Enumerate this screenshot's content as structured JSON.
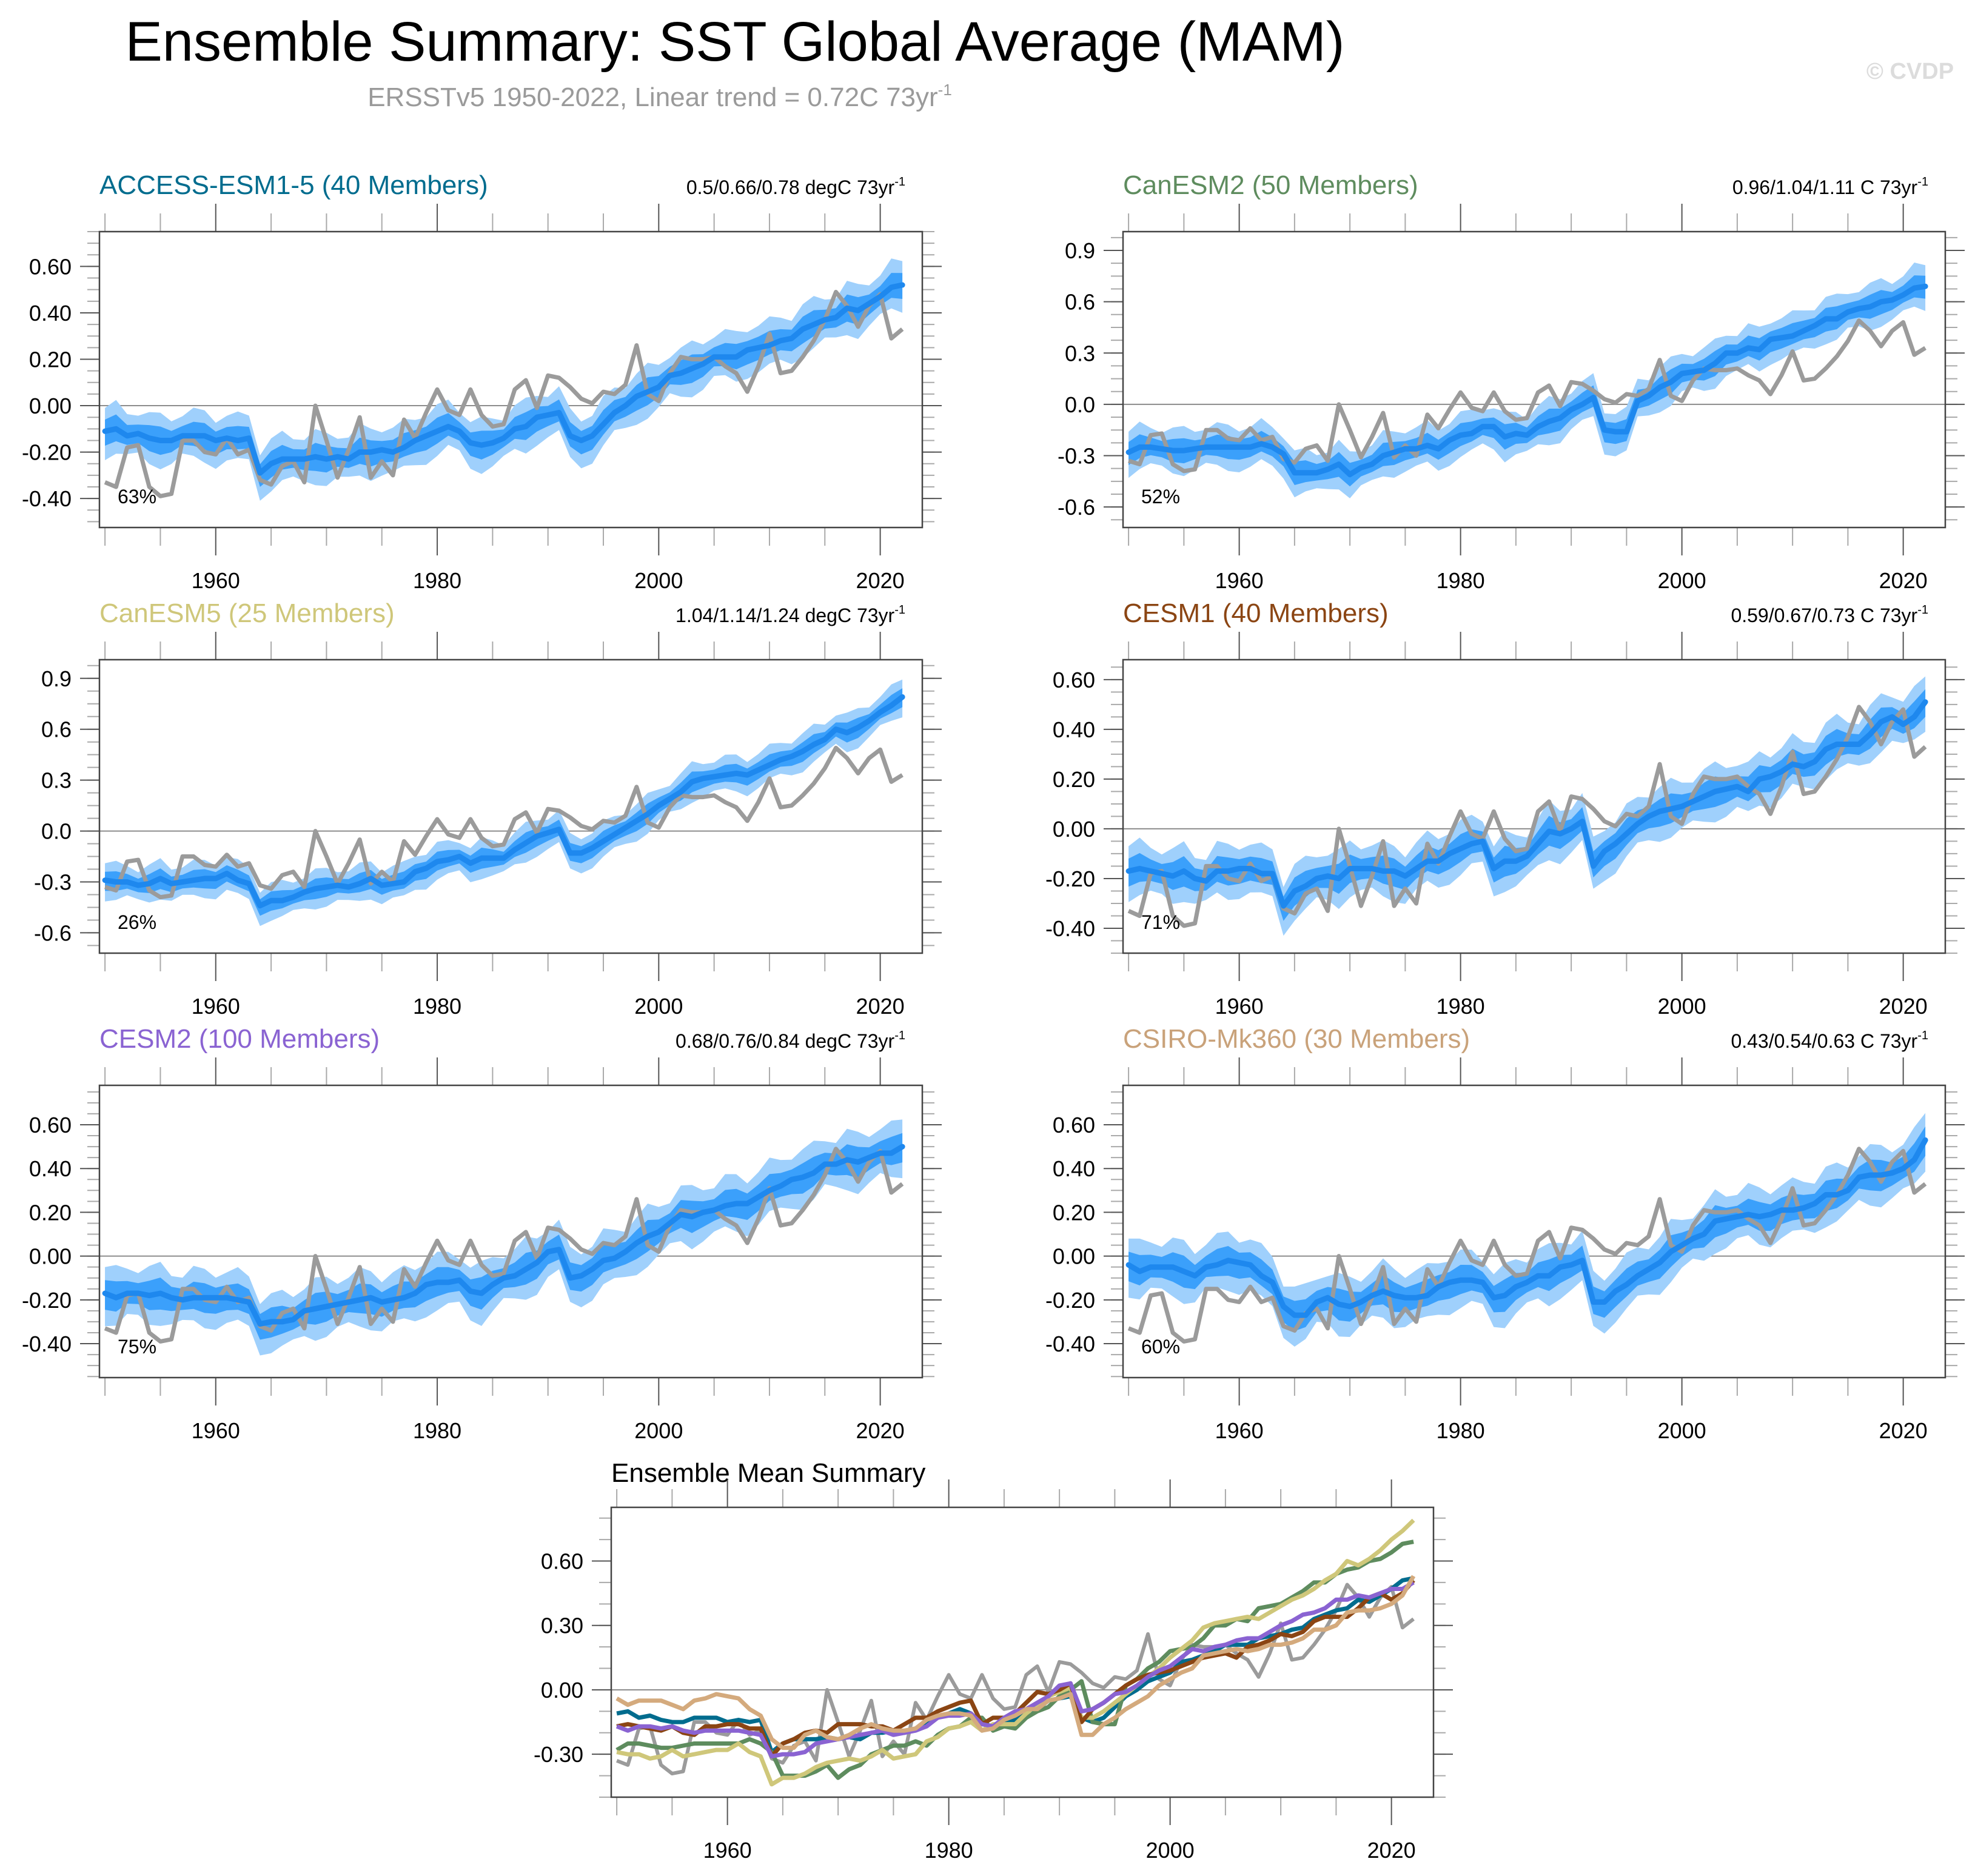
{
  "header": {
    "title": "Ensemble Summary: SST Global Average (MAM)",
    "subtitle": "ERSSTv5 1950-2022, Linear trend = 0.72C 73yr",
    "subtitle_superscript": "-1",
    "watermark": "© CVDP"
  },
  "colors": {
    "band_outer": "#9fd0fc",
    "band_inner": "#3ba0fb",
    "ens_mean": "#1e88ee",
    "observed": "#9b9b9b",
    "zero_line": "#8c8c8c",
    "frame": "#444444"
  },
  "chart_data": [
    {
      "type": "area",
      "panel": "ACCESS-ESM1-5",
      "title": "ACCESS-ESM1-5 (40 Members)",
      "title_color": "#006c8e",
      "trend_text": "0.5/0.66/0.78 degC 73yr",
      "trend_superscript": "-1",
      "percent_label": "63%",
      "xlim": [
        1949.5,
        2023.8
      ],
      "ylim": [
        -0.525,
        0.75
      ],
      "yticks": [
        -0.4,
        -0.2,
        0.0,
        0.2,
        0.4,
        0.6
      ],
      "ytick_labels": [
        "-0.40",
        "-0.20",
        "0.00",
        "0.20",
        "0.40",
        "0.60"
      ],
      "xticks": [
        1960,
        1980,
        2000,
        2020
      ],
      "xtick_labels": [
        "1960",
        "1980",
        "2000",
        "2020"
      ],
      "inner_halfwidth": 0.05,
      "outer_halfwidth": 0.1,
      "mean": [
        -0.11,
        -0.1,
        -0.13,
        -0.12,
        -0.14,
        -0.15,
        -0.15,
        -0.13,
        -0.13,
        -0.13,
        -0.15,
        -0.14,
        -0.15,
        -0.14,
        -0.29,
        -0.25,
        -0.23,
        -0.23,
        -0.23,
        -0.22,
        -0.23,
        -0.22,
        -0.23,
        -0.2,
        -0.2,
        -0.19,
        -0.2,
        -0.18,
        -0.15,
        -0.13,
        -0.11,
        -0.09,
        -0.11,
        -0.16,
        -0.17,
        -0.16,
        -0.14,
        -0.1,
        -0.09,
        -0.05,
        -0.04,
        -0.03,
        -0.13,
        -0.15,
        -0.13,
        -0.08,
        -0.03,
        0.0,
        0.04,
        0.06,
        0.08,
        0.13,
        0.14,
        0.16,
        0.18,
        0.21,
        0.21,
        0.21,
        0.24,
        0.25,
        0.26,
        0.28,
        0.29,
        0.33,
        0.35,
        0.37,
        0.38,
        0.42,
        0.41,
        0.44,
        0.47,
        0.51,
        0.52
      ]
    },
    {
      "type": "area",
      "panel": "CanESM2",
      "title": "CanESM2 (50 Members)",
      "title_color": "#5e8c5e",
      "trend_text": "0.96/1.04/1.11 C 73yr",
      "trend_superscript": "-1",
      "percent_label": "52%",
      "xlim": [
        1949.5,
        2023.8
      ],
      "ylim": [
        -0.72,
        1.01
      ],
      "yticks": [
        -0.6,
        -0.3,
        0.0,
        0.3,
        0.6,
        0.9
      ],
      "ytick_labels": [
        "-0.6",
        "-0.3",
        "0.0",
        "0.3",
        "0.6",
        "0.9"
      ],
      "xticks": [
        1960,
        1980,
        2000,
        2020
      ],
      "xtick_labels": [
        "1960",
        "1980",
        "2000",
        "2020"
      ],
      "inner_halfwidth": 0.06,
      "outer_halfwidth": 0.12,
      "mean": [
        -0.28,
        -0.25,
        -0.25,
        -0.26,
        -0.27,
        -0.27,
        -0.26,
        -0.25,
        -0.25,
        -0.25,
        -0.25,
        -0.25,
        -0.23,
        -0.25,
        -0.29,
        -0.4,
        -0.4,
        -0.4,
        -0.38,
        -0.35,
        -0.41,
        -0.37,
        -0.35,
        -0.3,
        -0.28,
        -0.26,
        -0.26,
        -0.24,
        -0.26,
        -0.21,
        -0.18,
        -0.17,
        -0.13,
        -0.13,
        -0.19,
        -0.17,
        -0.18,
        -0.13,
        -0.1,
        -0.08,
        -0.03,
        0.0,
        0.04,
        -0.15,
        -0.16,
        -0.16,
        0.02,
        0.05,
        0.1,
        0.13,
        0.18,
        0.19,
        0.2,
        0.24,
        0.3,
        0.3,
        0.33,
        0.32,
        0.38,
        0.39,
        0.4,
        0.43,
        0.46,
        0.5,
        0.5,
        0.54,
        0.56,
        0.57,
        0.6,
        0.61,
        0.64,
        0.68,
        0.69
      ]
    },
    {
      "type": "area",
      "panel": "CanESM5",
      "title": "CanESM5 (25 Members)",
      "title_color": "#cfc77a",
      "trend_text": "1.04/1.14/1.24 degC 73yr",
      "trend_superscript": "-1",
      "percent_label": "26%",
      "xlim": [
        1949.5,
        2023.8
      ],
      "ylim": [
        -0.72,
        1.01
      ],
      "yticks": [
        -0.6,
        -0.3,
        0.0,
        0.3,
        0.6,
        0.9
      ],
      "ytick_labels": [
        "-0.6",
        "-0.3",
        "0.0",
        "0.3",
        "0.6",
        "0.9"
      ],
      "xticks": [
        1960,
        1980,
        2000,
        2020
      ],
      "xtick_labels": [
        "1960",
        "1980",
        "2000",
        "2020"
      ],
      "inner_halfwidth": 0.05,
      "outer_halfwidth": 0.1,
      "mean": [
        -0.29,
        -0.3,
        -0.3,
        -0.32,
        -0.31,
        -0.28,
        -0.31,
        -0.3,
        -0.29,
        -0.28,
        -0.28,
        -0.25,
        -0.29,
        -0.31,
        -0.44,
        -0.41,
        -0.41,
        -0.39,
        -0.36,
        -0.34,
        -0.33,
        -0.32,
        -0.33,
        -0.31,
        -0.28,
        -0.32,
        -0.31,
        -0.3,
        -0.24,
        -0.22,
        -0.18,
        -0.17,
        -0.15,
        -0.19,
        -0.16,
        -0.16,
        -0.16,
        -0.11,
        -0.07,
        -0.03,
        -0.01,
        0.01,
        -0.13,
        -0.13,
        -0.1,
        -0.06,
        -0.02,
        0.02,
        0.06,
        0.1,
        0.15,
        0.19,
        0.23,
        0.29,
        0.31,
        0.32,
        0.33,
        0.34,
        0.33,
        0.36,
        0.39,
        0.42,
        0.44,
        0.47,
        0.51,
        0.54,
        0.6,
        0.58,
        0.61,
        0.65,
        0.7,
        0.74,
        0.79
      ]
    },
    {
      "type": "area",
      "panel": "CESM1",
      "title": "CESM1 (40 Members)",
      "title_color": "#8b4513",
      "trend_text": "0.59/0.67/0.73 C 73yr",
      "trend_superscript": "-1",
      "percent_label": "71%",
      "xlim": [
        1949.5,
        2023.8
      ],
      "ylim": [
        -0.5,
        0.68
      ],
      "yticks": [
        -0.4,
        -0.2,
        0.0,
        0.2,
        0.4,
        0.6
      ],
      "ytick_labels": [
        "-0.40",
        "-0.20",
        "0.00",
        "0.20",
        "0.40",
        "0.60"
      ],
      "xticks": [
        1960,
        1980,
        2000,
        2020
      ],
      "xtick_labels": [
        "1960",
        "1980",
        "2000",
        "2020"
      ],
      "inner_halfwidth": 0.05,
      "outer_halfwidth": 0.1,
      "mean": [
        -0.17,
        -0.16,
        -0.17,
        -0.18,
        -0.19,
        -0.17,
        -0.2,
        -0.21,
        -0.17,
        -0.17,
        -0.16,
        -0.16,
        -0.18,
        -0.18,
        -0.31,
        -0.25,
        -0.23,
        -0.2,
        -0.19,
        -0.2,
        -0.16,
        -0.16,
        -0.16,
        -0.17,
        -0.17,
        -0.19,
        -0.16,
        -0.13,
        -0.13,
        -0.1,
        -0.08,
        -0.06,
        -0.05,
        -0.16,
        -0.13,
        -0.13,
        -0.11,
        -0.06,
        -0.01,
        -0.02,
        0.0,
        0.03,
        -0.15,
        -0.09,
        -0.06,
        -0.02,
        0.02,
        0.05,
        0.07,
        0.08,
        0.09,
        0.11,
        0.13,
        0.15,
        0.16,
        0.17,
        0.15,
        0.2,
        0.21,
        0.23,
        0.26,
        0.25,
        0.27,
        0.32,
        0.34,
        0.34,
        0.34,
        0.38,
        0.43,
        0.45,
        0.42,
        0.45,
        0.51
      ]
    },
    {
      "type": "area",
      "panel": "CESM2",
      "title": "CESM2 (100 Members)",
      "title_color": "#8a63d2",
      "trend_text": "0.68/0.76/0.84 degC 73yr",
      "trend_superscript": "-1",
      "percent_label": "75%",
      "xlim": [
        1949.5,
        2023.8
      ],
      "ylim": [
        -0.555,
        0.78
      ],
      "yticks": [
        -0.4,
        -0.2,
        0.0,
        0.2,
        0.4,
        0.6
      ],
      "ytick_labels": [
        "-0.40",
        "-0.20",
        "0.00",
        "0.20",
        "0.40",
        "0.60"
      ],
      "xticks": [
        1960,
        1980,
        2000,
        2020
      ],
      "xtick_labels": [
        "1960",
        "1980",
        "2000",
        "2020"
      ],
      "inner_halfwidth": 0.06,
      "outer_halfwidth": 0.12,
      "mean": [
        -0.17,
        -0.19,
        -0.17,
        -0.17,
        -0.18,
        -0.17,
        -0.19,
        -0.2,
        -0.19,
        -0.19,
        -0.19,
        -0.19,
        -0.2,
        -0.21,
        -0.31,
        -0.3,
        -0.3,
        -0.29,
        -0.25,
        -0.24,
        -0.23,
        -0.22,
        -0.21,
        -0.2,
        -0.19,
        -0.21,
        -0.2,
        -0.19,
        -0.17,
        -0.13,
        -0.12,
        -0.12,
        -0.11,
        -0.16,
        -0.17,
        -0.13,
        -0.1,
        -0.09,
        -0.06,
        -0.03,
        0.02,
        0.03,
        -0.1,
        -0.09,
        -0.06,
        -0.02,
        -0.01,
        0.02,
        0.06,
        0.09,
        0.11,
        0.15,
        0.19,
        0.18,
        0.2,
        0.21,
        0.23,
        0.24,
        0.24,
        0.27,
        0.3,
        0.32,
        0.35,
        0.36,
        0.38,
        0.42,
        0.42,
        0.44,
        0.43,
        0.45,
        0.47,
        0.47,
        0.5
      ]
    },
    {
      "type": "area",
      "panel": "CSIRO-Mk360",
      "title": "CSIRO-Mk360 (30 Members)",
      "title_color": "#c9a27a",
      "trend_text": "0.43/0.54/0.63 C 73yr",
      "trend_superscript": "-1",
      "percent_label": "60%",
      "xlim": [
        1949.5,
        2023.8
      ],
      "ylim": [
        -0.555,
        0.78
      ],
      "yticks": [
        -0.4,
        -0.2,
        0.0,
        0.2,
        0.4,
        0.6
      ],
      "ytick_labels": [
        "-0.40",
        "-0.20",
        "0.00",
        "0.20",
        "0.40",
        "0.60"
      ],
      "xticks": [
        1960,
        1980,
        2000,
        2020
      ],
      "xtick_labels": [
        "1960",
        "1980",
        "2000",
        "2020"
      ],
      "inner_halfwidth": 0.06,
      "outer_halfwidth": 0.12,
      "mean": [
        -0.04,
        -0.07,
        -0.05,
        -0.05,
        -0.05,
        -0.07,
        -0.09,
        -0.05,
        -0.04,
        -0.02,
        -0.03,
        -0.04,
        -0.09,
        -0.12,
        -0.23,
        -0.27,
        -0.27,
        -0.21,
        -0.19,
        -0.22,
        -0.23,
        -0.21,
        -0.18,
        -0.16,
        -0.18,
        -0.19,
        -0.19,
        -0.18,
        -0.14,
        -0.12,
        -0.11,
        -0.11,
        -0.12,
        -0.19,
        -0.18,
        -0.14,
        -0.12,
        -0.09,
        -0.09,
        -0.05,
        -0.04,
        -0.02,
        -0.21,
        -0.21,
        -0.16,
        -0.13,
        -0.09,
        -0.06,
        -0.03,
        0.02,
        0.05,
        0.08,
        0.1,
        0.16,
        0.17,
        0.18,
        0.19,
        0.18,
        0.19,
        0.21,
        0.21,
        0.22,
        0.24,
        0.28,
        0.28,
        0.3,
        0.36,
        0.37,
        0.37,
        0.38,
        0.4,
        0.44,
        0.53
      ]
    },
    {
      "type": "line",
      "panel": "ensemble-mean-summary",
      "title": "Ensemble Mean Summary",
      "xlim": [
        1949.5,
        2023.8
      ],
      "ylim": [
        -0.5,
        0.85
      ],
      "yticks": [
        -0.3,
        0.0,
        0.3,
        0.6
      ],
      "ytick_labels": [
        "-0.30",
        "0.00",
        "0.30",
        "0.60"
      ],
      "xticks": [
        1960,
        1980,
        2000,
        2020
      ],
      "xtick_labels": [
        "1960",
        "1980",
        "2000",
        "2020"
      ],
      "series": [
        {
          "name": "ACCESS-ESM1-5",
          "color": "#006c8e",
          "ref": 0
        },
        {
          "name": "CanESM2",
          "color": "#5e8c5e",
          "ref": 1
        },
        {
          "name": "CanESM5",
          "color": "#cfc77a",
          "ref": 2
        },
        {
          "name": "CESM1",
          "color": "#8b4513",
          "ref": 3
        },
        {
          "name": "CESM2",
          "color": "#8a63d2",
          "ref": 4
        },
        {
          "name": "CSIRO-Mk360",
          "color": "#d4aa7d",
          "ref": 5
        }
      ]
    }
  ],
  "observed": {
    "name": "ERSSTv5",
    "start_year": 1950,
    "values": [
      -0.33,
      -0.35,
      -0.18,
      -0.17,
      -0.35,
      -0.39,
      -0.38,
      -0.15,
      -0.15,
      -0.2,
      -0.21,
      -0.14,
      -0.21,
      -0.19,
      -0.32,
      -0.34,
      -0.26,
      -0.24,
      -0.33,
      0.0,
      -0.15,
      -0.31,
      -0.19,
      -0.05,
      -0.31,
      -0.24,
      -0.3,
      -0.06,
      -0.14,
      -0.03,
      0.07,
      -0.02,
      -0.04,
      0.07,
      -0.04,
      -0.09,
      -0.08,
      0.07,
      0.11,
      -0.01,
      0.13,
      0.12,
      0.08,
      0.03,
      0.01,
      0.06,
      0.05,
      0.09,
      0.26,
      0.05,
      0.02,
      0.14,
      0.21,
      0.2,
      0.2,
      0.21,
      0.17,
      0.14,
      0.06,
      0.17,
      0.31,
      0.14,
      0.15,
      0.21,
      0.28,
      0.37,
      0.49,
      0.43,
      0.34,
      0.43,
      0.48,
      0.29,
      0.33
    ]
  }
}
